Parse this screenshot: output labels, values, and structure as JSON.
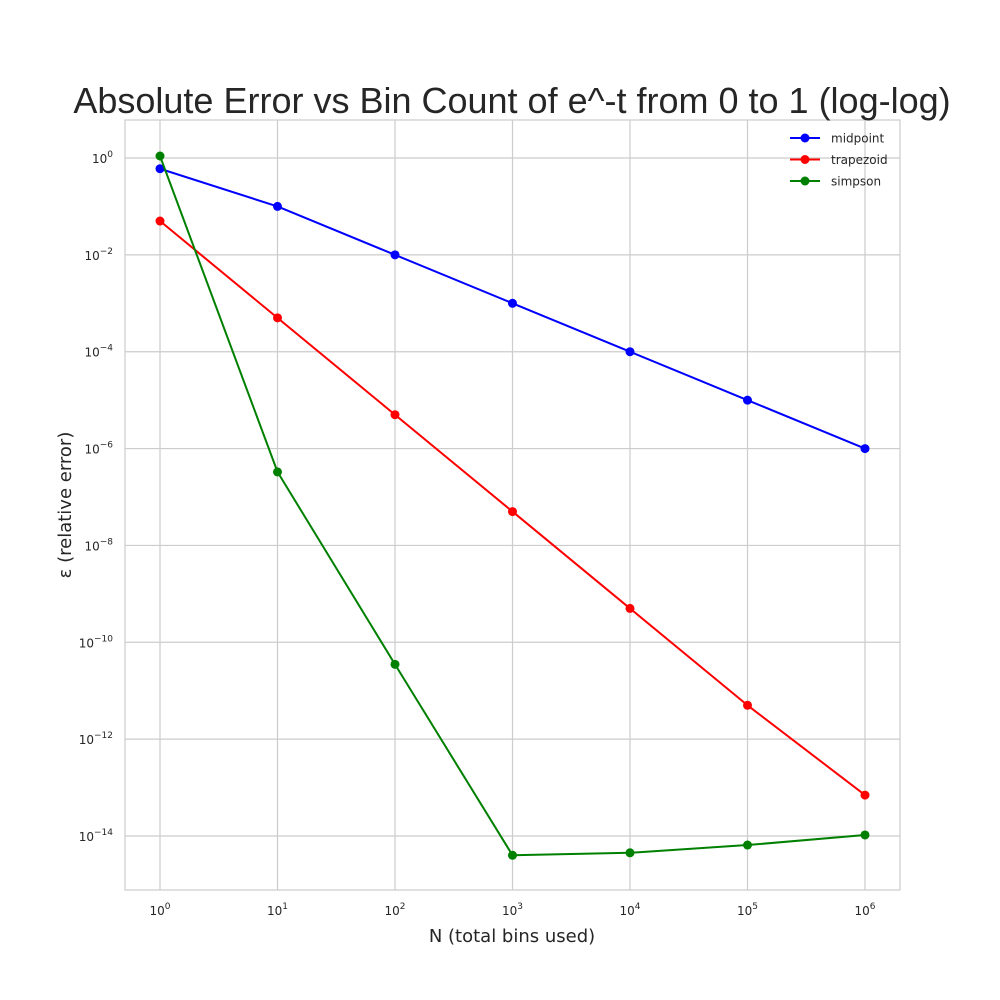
{
  "chart_data": {
    "type": "line",
    "title": "Absolute Error vs Bin Count of e^-t from 0 to 1 (log-log)",
    "xlabel": "N (total bins used)",
    "ylabel": "ε (relative error)",
    "xscale": "log",
    "yscale": "log",
    "x": [
      1,
      10,
      100,
      1000,
      10000,
      100000,
      1000000
    ],
    "xticks": [
      {
        "base": "10",
        "exp": "0"
      },
      {
        "base": "10",
        "exp": "1"
      },
      {
        "base": "10",
        "exp": "2"
      },
      {
        "base": "10",
        "exp": "3"
      },
      {
        "base": "10",
        "exp": "4"
      },
      {
        "base": "10",
        "exp": "5"
      },
      {
        "base": "10",
        "exp": "6"
      }
    ],
    "yticks": [
      {
        "base": "10",
        "exp": "0",
        "value": 1
      },
      {
        "base": "10",
        "exp": "−2",
        "value": 0.01
      },
      {
        "base": "10",
        "exp": "−4",
        "value": 0.0001
      },
      {
        "base": "10",
        "exp": "−6",
        "value": 1e-06
      },
      {
        "base": "10",
        "exp": "−8",
        "value": 1e-08
      },
      {
        "base": "10",
        "exp": "−10",
        "value": 1e-10
      },
      {
        "base": "10",
        "exp": "−12",
        "value": 1e-12
      },
      {
        "base": "10",
        "exp": "−14",
        "value": 1e-14
      }
    ],
    "xlim": [
      0.5,
      2000000
    ],
    "ylim": [
      2e-16,
      5
    ],
    "grid": true,
    "legend_position": "top-right",
    "series": [
      {
        "name": "midpoint",
        "color": "#0000ff",
        "values": [
          0.6,
          0.1,
          0.01,
          0.001,
          0.0001,
          1e-05,
          1e-06
        ]
      },
      {
        "name": "trapezoid",
        "color": "#ff0000",
        "values": [
          0.05,
          0.0005,
          5e-06,
          5e-08,
          5e-10,
          5e-12,
          7e-14
        ]
      },
      {
        "name": "simpson",
        "color": "#008000",
        "values": [
          1.1,
          3.3e-07,
          3.5e-11,
          4e-15,
          4.5e-15,
          6.5e-15,
          1.05e-14
        ]
      }
    ]
  }
}
